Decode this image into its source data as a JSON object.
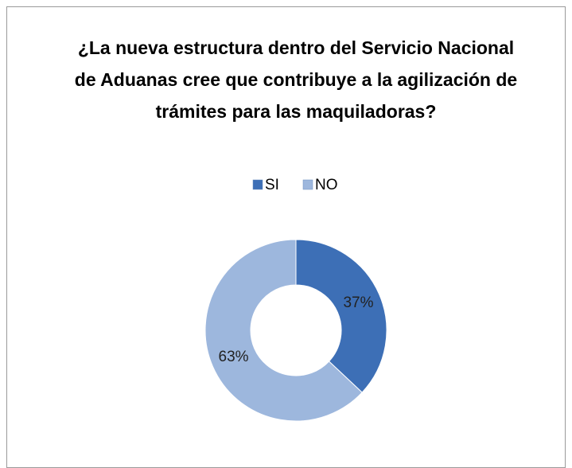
{
  "chart_data": {
    "type": "donut",
    "title": "¿La nueva estructura dentro del Servicio Nacional de Aduanas cree que contribuye a la agilización de trámites para las maquiladoras?",
    "categories": [
      "SI",
      "NO"
    ],
    "values": [
      37,
      63
    ],
    "value_labels": [
      "37%",
      "63%"
    ],
    "colors": [
      "#3d6fb6",
      "#9db7dd"
    ],
    "legend": "top"
  }
}
